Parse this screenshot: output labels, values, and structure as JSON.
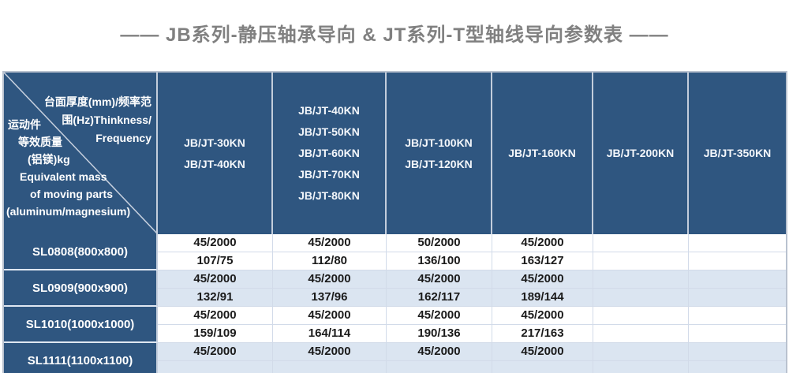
{
  "page": {
    "title": "——  JB系列-静压轴承导向 & JT系列-T型轴线导向参数表  ——"
  },
  "table": {
    "corner": {
      "top_right_lines": [
        "台面厚度(mm)/频率范",
        "围(Hz)Thinkness/",
        "Frequency"
      ],
      "bottom_left_lines": [
        "运动件",
        "等效质量",
        "(铝镁)kg",
        "Equivalent mass",
        "of moving parts",
        "(aluminum/magnesium)"
      ]
    },
    "columns": [
      {
        "lines": [
          "JB/JT-30KN",
          "JB/JT-40KN"
        ]
      },
      {
        "lines": [
          "JB/JT-40KN",
          "JB/JT-50KN",
          "JB/JT-60KN",
          "JB/JT-70KN",
          "JB/JT-80KN"
        ]
      },
      {
        "lines": [
          "JB/JT-100KN",
          "JB/JT-120KN"
        ]
      },
      {
        "lines": [
          "JB/JT-160KN"
        ]
      },
      {
        "lines": [
          "JB/JT-200KN"
        ]
      },
      {
        "lines": [
          "JB/JT-350KN"
        ]
      }
    ],
    "rows": [
      {
        "label": "SL0808(800x800)",
        "shade": "white",
        "line1": [
          "45/2000",
          "45/2000",
          "50/2000",
          "45/2000",
          "",
          ""
        ],
        "line2": [
          "107/75",
          "112/80",
          "136/100",
          "163/127",
          "",
          ""
        ]
      },
      {
        "label": "SL0909(900x900)",
        "shade": "blue",
        "line1": [
          "45/2000",
          "45/2000",
          "45/2000",
          "45/2000",
          "",
          ""
        ],
        "line2": [
          "132/91",
          "137/96",
          "162/117",
          "189/144",
          "",
          ""
        ]
      },
      {
        "label": "SL1010(1000x1000)",
        "shade": "white",
        "line1": [
          "45/2000",
          "45/2000",
          "45/2000",
          "45/2000",
          "",
          ""
        ],
        "line2": [
          "159/109",
          "164/114",
          "190/136",
          "217/163",
          "",
          ""
        ]
      },
      {
        "label": "SL1111(1100x1100)",
        "shade": "blue",
        "line1": [
          "45/2000",
          "45/2000",
          "45/2000",
          "45/2000",
          "",
          ""
        ],
        "line2": [
          "",
          "",
          "",
          "",
          "",
          ""
        ]
      }
    ],
    "colors": {
      "header_bg": "#2f5680",
      "row_light_blue": "#dbe5f1",
      "row_white": "#ffffff",
      "grid_line": "#d2dbe9",
      "header_divider": "#c3cddc",
      "outer_border": "#b9c2cf",
      "title_text": "#808080",
      "header_text": "#ffffff",
      "data_text": "#1a1a1a"
    }
  }
}
